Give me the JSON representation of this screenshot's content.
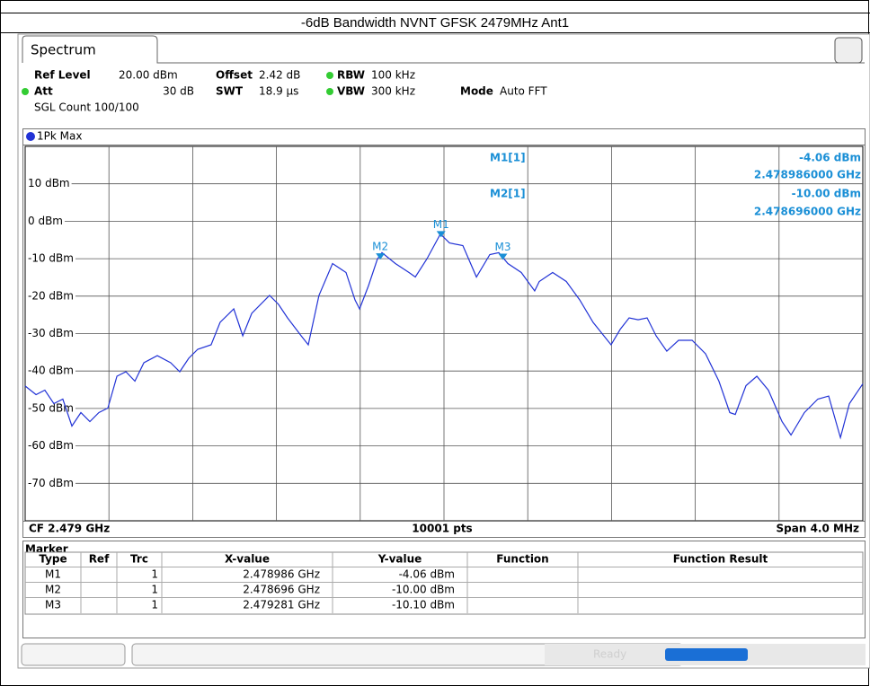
{
  "page_title": "-6dB Bandwidth NVNT GFSK 2479MHz Ant1",
  "tab": "Spectrum",
  "settings": {
    "ref_level_label": "Ref Level",
    "ref_level": "20.00 dBm",
    "offset_label": "Offset",
    "offset": "2.42 dB",
    "rbw_label": "RBW",
    "rbw": "100 kHz",
    "att_label": "Att",
    "att": "30 dB",
    "swt_label": "SWT",
    "swt": "18.9 µs",
    "vbw_label": "VBW",
    "vbw": "300 kHz",
    "mode_label": "Mode",
    "mode": "Auto FFT",
    "count": "SGL Count 100/100"
  },
  "trace_label": "1Pk Max",
  "readout": [
    {
      "name": "M1[1]",
      "level": "-4.06 dBm",
      "freq": "2.478986000 GHz"
    },
    {
      "name": "M2[1]",
      "level": "-10.00 dBm",
      "freq": "2.478696000 GHz"
    }
  ],
  "footer": {
    "cf": "CF 2.479 GHz",
    "pts": "10001 pts",
    "span": "Span 4.0 MHz"
  },
  "chart_data": {
    "type": "line",
    "xlim": [
      2.477,
      2.481
    ],
    "ylim": [
      -80,
      20
    ],
    "yticks": [
      {
        "value": 10,
        "label": "10 dBm"
      },
      {
        "value": 0,
        "label": "0 dBm"
      },
      {
        "value": -10,
        "label": "-10 dBm"
      },
      {
        "value": -20,
        "label": "-20 dBm"
      },
      {
        "value": -30,
        "label": "-30 dBm"
      },
      {
        "value": -40,
        "label": "-40 dBm"
      },
      {
        "value": -50,
        "label": "-50 dBm"
      },
      {
        "value": -60,
        "label": "-60 dBm"
      },
      {
        "value": -70,
        "label": "-70 dBm"
      }
    ],
    "grid": true,
    "x": [
      2.477,
      2.477052,
      2.477094,
      2.477137,
      2.47718,
      2.477223,
      2.477266,
      2.477309,
      2.477352,
      2.477395,
      2.477438,
      2.477481,
      2.477524,
      2.477567,
      2.477631,
      2.477695,
      2.477738,
      2.477781,
      2.477824,
      2.477888,
      2.477931,
      2.477996,
      2.478039,
      2.478082,
      2.478167,
      2.47821,
      2.478253,
      2.478318,
      2.478352,
      2.478403,
      2.478468,
      2.478532,
      2.478575,
      2.478597,
      2.478639,
      2.478682,
      2.478704,
      2.478768,
      2.478833,
      2.478863,
      2.478918,
      2.478983,
      2.479026,
      2.47909,
      2.479155,
      2.479219,
      2.479262,
      2.479305,
      2.479369,
      2.479433,
      2.479455,
      2.479519,
      2.479584,
      2.479648,
      2.479712,
      2.479798,
      2.479841,
      2.479884,
      2.479927,
      2.47997,
      2.480013,
      2.480064,
      2.48012,
      2.480185,
      2.480249,
      2.480313,
      2.480365,
      2.480391,
      2.480442,
      2.480494,
      2.480549,
      2.480614,
      2.480657,
      2.480721,
      2.480785,
      2.480837,
      2.480893,
      2.480936,
      2.481
    ],
    "series": [
      {
        "name": "1Pk Max",
        "color": "#2233d6",
        "values": [
          -44,
          -46.3,
          -45.1,
          -48.7,
          -47.5,
          -54.7,
          -51.1,
          -53.5,
          -51.1,
          -49.9,
          -41.4,
          -40.2,
          -42.7,
          -37.8,
          -35.9,
          -37.8,
          -40.2,
          -36.6,
          -34.2,
          -33,
          -27,
          -23.4,
          -30.6,
          -24.6,
          -19.8,
          -22.2,
          -25.8,
          -30.6,
          -33,
          -19.8,
          -11.3,
          -13.7,
          -21,
          -23.4,
          -17.3,
          -10.1,
          -8.4,
          -11.3,
          -13.7,
          -14.9,
          -10.1,
          -3.4,
          -5.8,
          -6.5,
          -14.9,
          -8.9,
          -8.4,
          -11.3,
          -13.7,
          -18.6,
          -16.1,
          -13.7,
          -16.1,
          -21,
          -27,
          -33,
          -28.9,
          -25.8,
          -26.3,
          -25.8,
          -30.6,
          -34.7,
          -31.8,
          -31.8,
          -35.4,
          -42.7,
          -51.1,
          -51.6,
          -43.9,
          -41.4,
          -45.1,
          -53.5,
          -57.1,
          -51.1,
          -47.5,
          -46.7,
          -57.8,
          -48.7,
          -43.4
        ]
      }
    ],
    "markers": [
      {
        "name": "M1",
        "x": 2.478986,
        "y": -4.06
      },
      {
        "name": "M2",
        "x": 2.478696,
        "y": -10.0
      },
      {
        "name": "M3",
        "x": 2.479281,
        "y": -10.1
      }
    ],
    "marker_color": "#1a8fd6"
  },
  "marker_table": {
    "title": "Marker",
    "header": [
      "Type",
      "Ref",
      "Trc",
      "X-value",
      "Y-value",
      "Function",
      "Function Result"
    ],
    "rows": [
      [
        "M1",
        "",
        "1",
        "2.478986 GHz",
        "-4.06 dBm",
        "",
        ""
      ],
      [
        "M2",
        "",
        "1",
        "2.478696 GHz",
        "-10.00 dBm",
        "",
        ""
      ],
      [
        "M3",
        "",
        "1",
        "2.479281 GHz",
        "-10.10 dBm",
        "",
        ""
      ]
    ]
  },
  "status": "Ready"
}
